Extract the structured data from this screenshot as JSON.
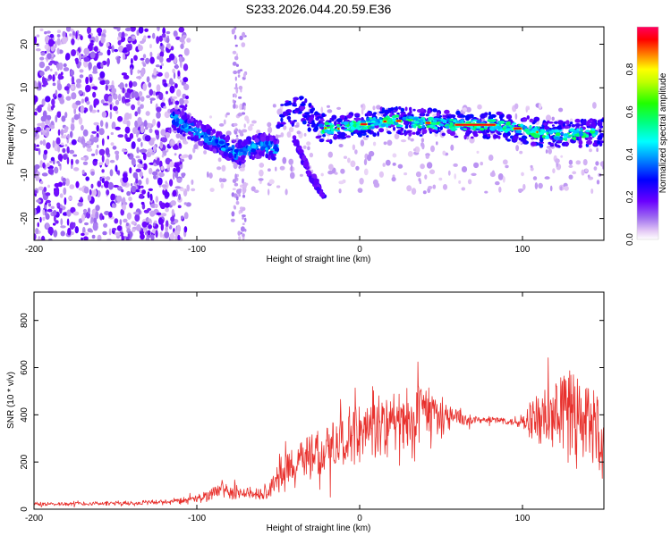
{
  "title": "S233.2026.044.20.59.E36",
  "chart_data": [
    {
      "type": "heatmap",
      "name": "spectrogram",
      "xlabel": "Height of straight line (km)",
      "ylabel": "Frequency (Hz)",
      "xlim": [
        -200,
        150
      ],
      "ylim": [
        -25,
        24
      ],
      "xticks": [
        -200,
        -100,
        0,
        100
      ],
      "xtick_labels": [
        "-200",
        "-100",
        "0",
        "100"
      ],
      "yticks": [
        -20,
        -10,
        0,
        10,
        20
      ],
      "ytick_labels": [
        "-20",
        "-10",
        "0",
        "10",
        "20"
      ],
      "colorbar": {
        "label": "Normalized spectral amplitude",
        "range": [
          0,
          1
        ],
        "ticks": [
          0.0,
          0.2,
          0.4,
          0.6,
          0.8
        ],
        "tick_labels": [
          "0.0",
          "0.2",
          "0.4",
          "0.6",
          "0.8"
        ],
        "colors": [
          "#ffffff",
          "#e3c8f5",
          "#b48ef0",
          "#7a3cf5",
          "#5a00ff",
          "#0000ff",
          "#0080ff",
          "#00ffff",
          "#00ff80",
          "#00ff00",
          "#80ff00",
          "#ffff00",
          "#ff8000",
          "#ff0000",
          "#ff0060"
        ]
      },
      "features": [
        {
          "name": "broadband noise",
          "x_range": [
            -200,
            -115
          ],
          "freq_range": [
            -25,
            24
          ],
          "amplitude": 0.1
        },
        {
          "name": "descending band",
          "x": [
            -115,
            -100,
            -85,
            -75,
            -60,
            -50
          ],
          "freq": [
            3,
            0,
            -3,
            -5,
            -3,
            -4
          ],
          "amplitude": 0.3
        },
        {
          "name": "steep branch",
          "x": [
            -40,
            -35,
            -30,
            -25,
            -22
          ],
          "freq": [
            -2,
            -6,
            -10,
            -13,
            -15
          ],
          "amplitude": 0.2
        },
        {
          "name": "main signal",
          "x": [
            -50,
            -35,
            -25,
            -15,
            0,
            20,
            40,
            60,
            80,
            100,
            120,
            150
          ],
          "freq": [
            4,
            5,
            1,
            0.5,
            1.5,
            2.5,
            2,
            1.5,
            1.5,
            0.5,
            -1,
            0
          ],
          "amplitude": 0.9
        }
      ]
    },
    {
      "type": "line",
      "name": "snr",
      "xlabel": "Height of straight line (km)",
      "ylabel": "SNR (10 * v/v)",
      "xlim": [
        -200,
        150
      ],
      "ylim": [
        0,
        920
      ],
      "xticks": [
        -200,
        -100,
        0,
        100
      ],
      "xtick_labels": [
        "-200",
        "-100",
        "0",
        "100"
      ],
      "yticks": [
        0,
        200,
        400,
        600,
        800
      ],
      "ytick_labels": [
        "0",
        "200",
        "400",
        "600",
        "800"
      ],
      "color": "#e8302c",
      "series": [
        {
          "name": "SNR envelope",
          "x": [
            -200,
            -150,
            -120,
            -100,
            -85,
            -60,
            -50,
            -40,
            -30,
            -20,
            -10,
            0,
            10,
            20,
            30,
            40,
            50,
            60,
            70,
            80,
            90,
            100,
            110,
            120,
            130,
            140,
            145,
            150
          ],
          "y": [
            22,
            25,
            30,
            40,
            80,
            60,
            120,
            190,
            260,
            250,
            280,
            310,
            330,
            360,
            390,
            410,
            400,
            385,
            380,
            378,
            375,
            372,
            380,
            400,
            380,
            350,
            330,
            320
          ],
          "spread": [
            10,
            12,
            15,
            25,
            40,
            40,
            90,
            120,
            140,
            150,
            160,
            160,
            150,
            160,
            170,
            180,
            120,
            60,
            25,
            20,
            20,
            40,
            180,
            240,
            260,
            280,
            300,
            260
          ]
        }
      ]
    }
  ]
}
